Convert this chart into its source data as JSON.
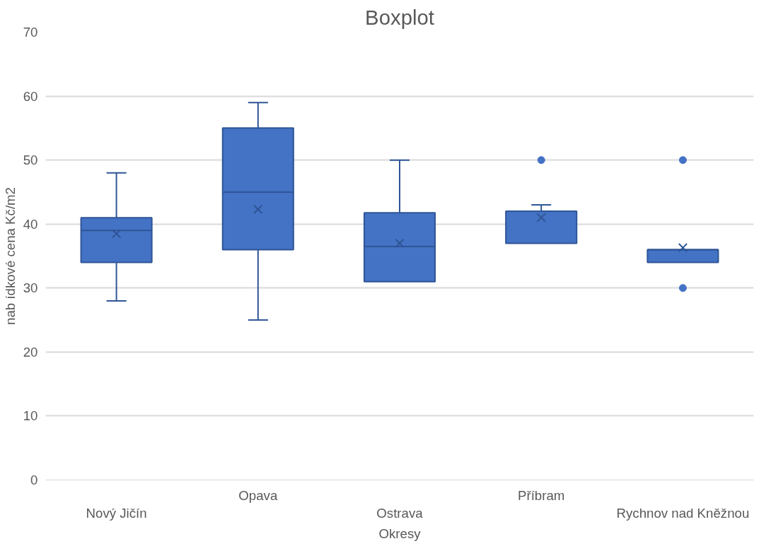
{
  "chart_data": {
    "type": "box",
    "title": "Boxplot",
    "xlabel": "Okresy",
    "ylabel": "nab ídkové cena Kč/m2",
    "categories": [
      "Nový Jičín",
      "Opava",
      "Ostrava",
      "Příbram",
      "Rychnov nad Kněžnou"
    ],
    "series": [
      {
        "color": "#4472c4",
        "boxes": [
          {
            "low": 28,
            "q1": 34,
            "median": 39,
            "q3": 41,
            "high": 48,
            "mean": 38.5
          },
          {
            "low": 25,
            "q1": 36,
            "median": 45,
            "q3": 55,
            "high": 59,
            "mean": 42.3
          },
          {
            "low": 31,
            "q1": 31,
            "median": 36.5,
            "q3": 41.75,
            "high": 50,
            "mean": 37
          },
          {
            "low": 37,
            "q1": 37,
            "median": 42,
            "q3": 42,
            "high": 43,
            "mean": 41,
            "outliers": [
              50
            ]
          },
          {
            "low": 34,
            "q1": 34,
            "median": 36,
            "q3": 36,
            "high": 36,
            "mean": 36.3,
            "outliers": [
              30,
              50
            ]
          }
        ]
      }
    ],
    "ylim": [
      0,
      70
    ],
    "yticks": [
      0,
      10,
      20,
      30,
      40,
      50,
      60,
      70
    ],
    "grid": "y"
  }
}
